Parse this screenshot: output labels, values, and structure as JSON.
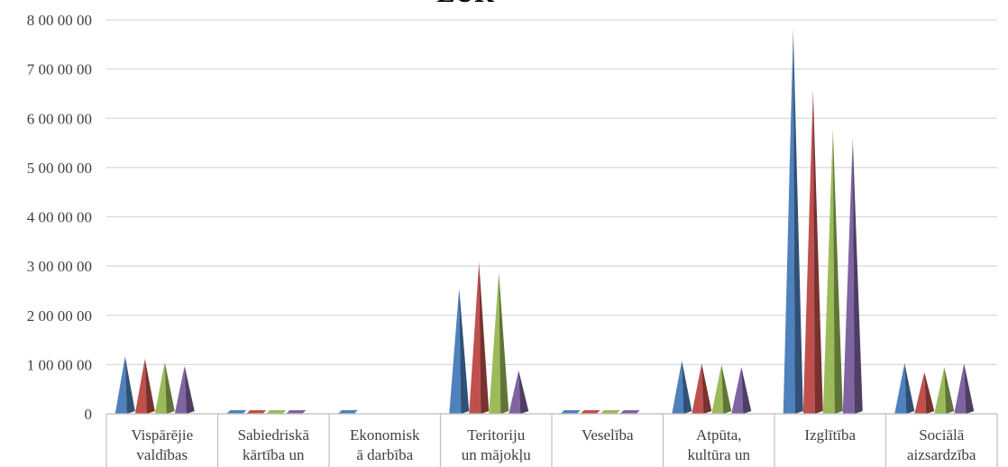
{
  "chart_data": {
    "type": "bar",
    "title": "EUR",
    "categories": [
      [
        "Vispārējie",
        "valdības"
      ],
      [
        "Sabiedriskā",
        "kārtība un"
      ],
      [
        "Ekonomisk",
        "ā darbība"
      ],
      [
        "Teritoriju",
        "un mājokļu"
      ],
      [
        "Veselība"
      ],
      [
        "Atpūta,",
        "kultūra un"
      ],
      [
        "Izglītība"
      ],
      [
        "Sociālā",
        "aizsardzība"
      ]
    ],
    "series": [
      {
        "color": "#4F81BD",
        "values": [
          1170000,
          10000,
          10000,
          2550000,
          10000,
          1080000,
          7820000,
          1030000
        ]
      },
      {
        "color": "#C0504D",
        "values": [
          1120000,
          10000,
          0,
          3080000,
          10000,
          1020000,
          6580000,
          850000
        ]
      },
      {
        "color": "#9BBB59",
        "values": [
          1050000,
          10000,
          0,
          2870000,
          10000,
          1000000,
          5780000,
          950000
        ]
      },
      {
        "color": "#8064A2",
        "values": [
          970000,
          10000,
          0,
          880000,
          10000,
          950000,
          5600000,
          1020000
        ]
      }
    ],
    "y_ticks": [
      "0",
      "1 00 00 00",
      "2 00 00 00",
      "3 00 00 00",
      "4 00 00 00",
      "5 00 00 00",
      "6 00 00 00",
      "7 00 00 00",
      "8 00 00 00"
    ],
    "ylim": [
      0,
      8000000
    ],
    "grid": true,
    "legend": "none"
  }
}
